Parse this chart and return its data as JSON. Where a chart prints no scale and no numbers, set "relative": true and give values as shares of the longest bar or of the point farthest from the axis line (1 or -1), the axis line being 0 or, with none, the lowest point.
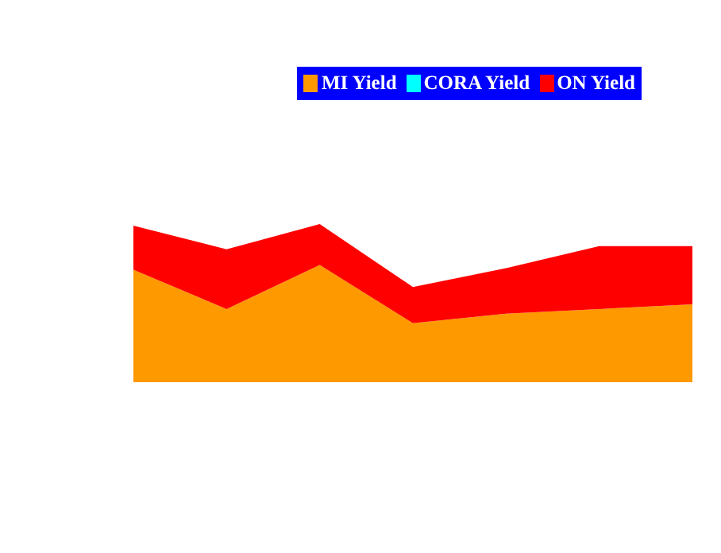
{
  "chart_data": {
    "type": "area",
    "stacked": true,
    "relative": true,
    "legend": "top right",
    "categories": [
      null,
      null,
      null,
      null,
      null,
      null,
      null
    ],
    "series": [
      {
        "name": "MI Yield",
        "color": "#ff9900",
        "values": [
          0.71,
          0.46,
          0.74,
          0.37,
          0.43,
          0.46,
          0.49
        ]
      },
      {
        "name": "CORA Yield",
        "color": "#00ffff",
        "values": [
          null,
          null,
          null,
          null,
          null,
          null,
          null
        ]
      },
      {
        "name": "ON Yield",
        "color": "#ff0000",
        "values": [
          0.28,
          0.38,
          0.26,
          0.23,
          0.29,
          0.4,
          0.37
        ]
      }
    ]
  }
}
